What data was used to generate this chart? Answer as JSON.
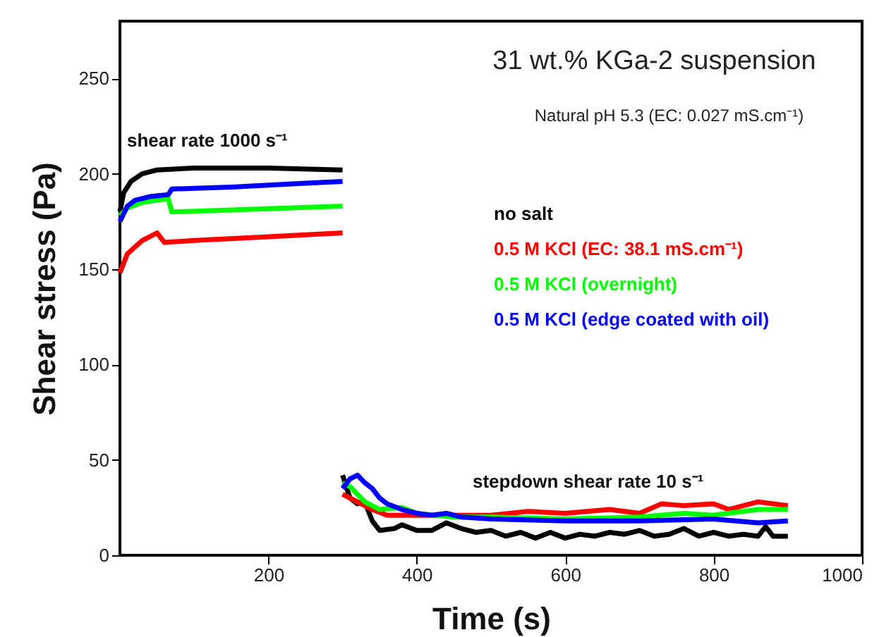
{
  "chart_data": {
    "type": "line",
    "title": "31 wt.% KGa-2 suspension",
    "subtitle": "Natural pH 5.3 (EC: 0.027 mS.cm⁻¹)",
    "xlabel": "Time (s)",
    "ylabel": "Shear stress (Pa)",
    "xlim": [
      0,
      1000
    ],
    "xticks": [
      200,
      400,
      600,
      800,
      1000
    ],
    "ylim": [
      0,
      280
    ],
    "yticks": [
      0,
      50,
      100,
      150,
      200,
      250
    ],
    "grid": false,
    "legend": "right",
    "marker": "none",
    "line_style": "solid",
    "annotations": [
      "shear rate 1000 s⁻¹",
      "stepdown shear rate 10 s⁻¹"
    ],
    "series": [
      {
        "name": "no salt",
        "color": "#000000",
        "x": [
          0,
          5,
          15,
          30,
          50,
          100,
          200,
          300
        ],
        "values": [
          180,
          190,
          196,
          200,
          202,
          203,
          203,
          202
        ]
      },
      {
        "name": "0.5 M KCl (EC: 38.1 mS.cm⁻¹)",
        "color": "#ff0000",
        "x": [
          0,
          10,
          30,
          50,
          60,
          100,
          200,
          300
        ],
        "values": [
          148,
          158,
          165,
          169,
          164,
          165,
          167,
          169
        ]
      },
      {
        "name": "0.5 M KCl (overnight)",
        "color": "#00ff00",
        "x": [
          0,
          10,
          30,
          65,
          70,
          150,
          300
        ],
        "values": [
          178,
          182,
          185,
          187,
          180,
          181,
          183
        ]
      },
      {
        "name": "0.5 M KCl (edge coated with oil)",
        "color": "#0000ff",
        "x": [
          0,
          10,
          20,
          40,
          65,
          70,
          150,
          250,
          300
        ],
        "values": [
          175,
          183,
          186,
          188,
          189,
          192,
          193,
          195,
          196
        ]
      },
      {
        "color": "#000000",
        "x": [
          300,
          310,
          320,
          330,
          340,
          350,
          370,
          380,
          400,
          420,
          440,
          460,
          480,
          500,
          520,
          540,
          560,
          580,
          600,
          620,
          640,
          660,
          680,
          700,
          720,
          740,
          760,
          780,
          800,
          820,
          840,
          860,
          870,
          880,
          900
        ],
        "values": [
          42,
          30,
          27,
          28,
          18,
          13,
          14,
          16,
          13,
          13,
          17,
          14,
          12,
          13,
          10,
          12,
          9,
          12,
          9,
          11,
          10,
          12,
          11,
          13,
          10,
          11,
          14,
          10,
          12,
          10,
          11,
          10,
          15,
          10,
          10
        ]
      },
      {
        "color": "#ff0000",
        "x": [
          300,
          320,
          340,
          360,
          400,
          450,
          500,
          550,
          600,
          660,
          700,
          730,
          760,
          800,
          820,
          860,
          900
        ],
        "values": [
          32,
          28,
          24,
          21,
          21,
          21,
          21,
          23,
          22,
          24,
          22,
          27,
          26,
          27,
          24,
          28,
          26
        ]
      },
      {
        "color": "#00ff00",
        "x": [
          300,
          310,
          330,
          350,
          380,
          400,
          450,
          500,
          600,
          700,
          760,
          800,
          860,
          900
        ],
        "values": [
          38,
          36,
          28,
          24,
          25,
          22,
          20,
          20,
          19,
          20,
          22,
          21,
          24,
          24
        ]
      },
      {
        "color": "#0000ff",
        "x": [
          300,
          310,
          320,
          330,
          340,
          350,
          360,
          380,
          400,
          420,
          440,
          460,
          500,
          600,
          700,
          800,
          860,
          900
        ],
        "values": [
          35,
          40,
          42,
          38,
          35,
          30,
          27,
          24,
          22,
          21,
          22,
          20,
          19,
          18,
          18,
          19,
          17,
          18
        ]
      }
    ]
  }
}
